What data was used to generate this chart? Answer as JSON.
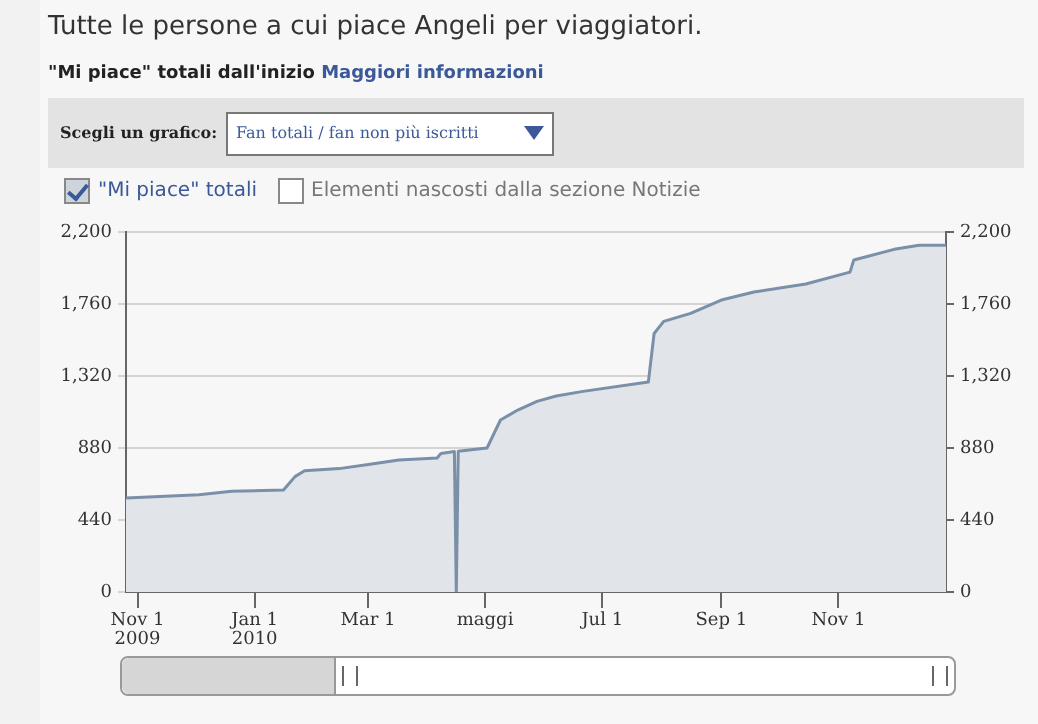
{
  "chart_data": {
    "type": "area",
    "title": "Tutte le persone a cui piace Angeli per viaggiatori.",
    "subtitle": "\"Mi piace\" totali dall'inizio",
    "annotations": [
      "Maggiori informazioni",
      "Scegli un grafico:",
      "Fan totali / fan non più iscritti",
      "Elementi nascosti dalla sezione Notizie"
    ],
    "x": [
      "2009-10-26",
      "2009-12-03",
      "2009-12-20",
      "2010-01-16",
      "2010-01-22",
      "2010-01-27",
      "2010-02-14",
      "2010-03-03",
      "2010-03-17",
      "2010-04-06",
      "2010-04-08",
      "2010-04-15",
      "2010-04-16",
      "2010-04-17",
      "2010-05-02",
      "2010-05-09",
      "2010-05-18",
      "2010-05-28",
      "2010-06-07",
      "2010-06-21",
      "2010-07-25",
      "2010-07-28",
      "2010-08-02",
      "2010-08-16",
      "2010-09-01",
      "2010-09-18",
      "2010-10-15",
      "2010-11-07",
      "2010-11-09",
      "2010-11-30",
      "2010-12-13",
      "2010-12-27"
    ],
    "series": [
      {
        "name": "\"Mi piace\" totali",
        "color": "#7a8fa8",
        "values": [
          574,
          595,
          615,
          623,
          705,
          741,
          754,
          782,
          806,
          819,
          847,
          858,
          0,
          860,
          880,
          1051,
          1112,
          1165,
          1198,
          1226,
          1283,
          1580,
          1654,
          1703,
          1784,
          1833,
          1882,
          1955,
          2029,
          2094,
          2119,
          2119
        ]
      }
    ],
    "xlim": [
      "2009-10-26",
      "2010-12-27"
    ],
    "xticks": [
      {
        "value": "2009-11-01",
        "label": "Nov 1\n2009"
      },
      {
        "value": "2010-01-01",
        "label": "Jan 1\n2010"
      },
      {
        "value": "2010-03-01",
        "label": "Mar 1"
      },
      {
        "value": "2010-05-01",
        "label": "maggi"
      },
      {
        "value": "2010-07-01",
        "label": "Jul 1"
      },
      {
        "value": "2010-09-01",
        "label": "Sep 1"
      },
      {
        "value": "2010-11-01",
        "label": "Nov 1"
      }
    ],
    "ylim": [
      0,
      2200
    ],
    "yticks": [
      0,
      440,
      880,
      {
        "value": 1320,
        "label": "1,320"
      },
      {
        "value": 1760,
        "label": "1,760"
      },
      {
        "value": 2200,
        "label": "2,200"
      }
    ],
    "y2lim": [
      0,
      2200
    ],
    "y2ticks": [
      0,
      440,
      880,
      {
        "value": 1320,
        "label": "1,320"
      },
      {
        "value": 1760,
        "label": "1,760"
      },
      {
        "value": 2200,
        "label": "2,200"
      }
    ],
    "grid": "y",
    "legend": "top left",
    "marker": "none"
  }
}
